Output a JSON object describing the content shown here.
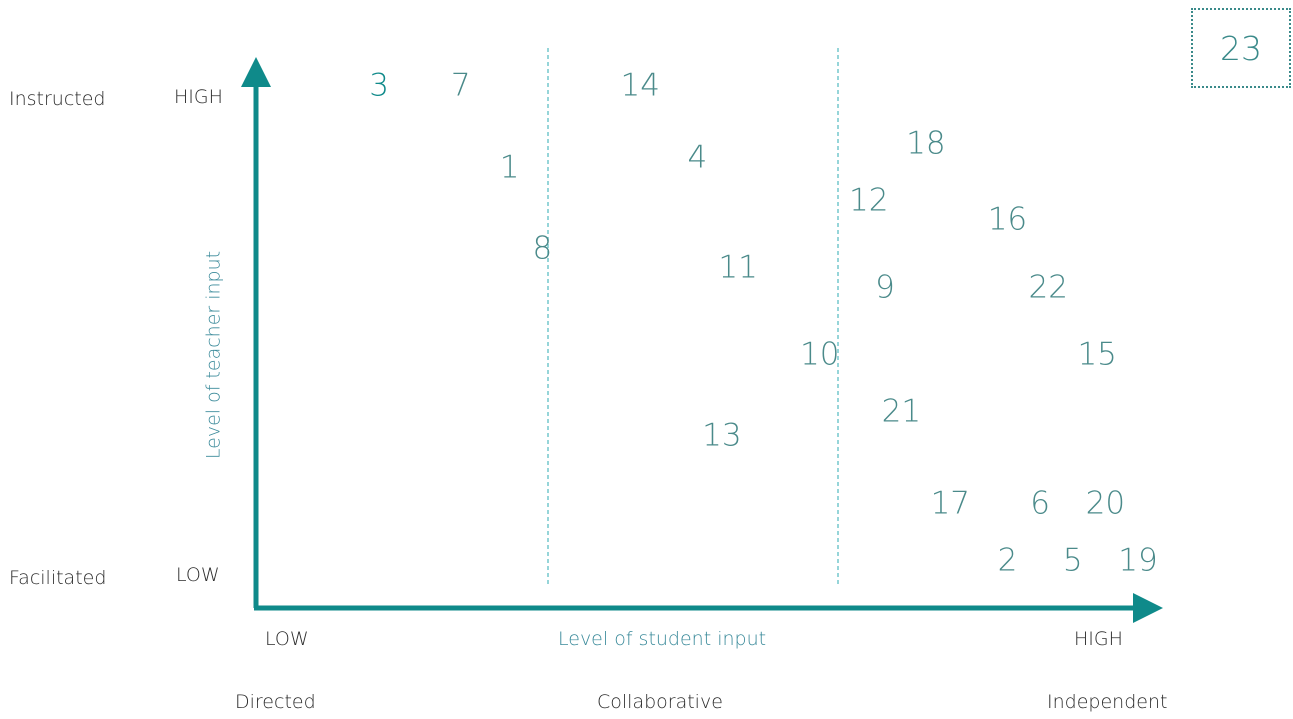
{
  "page_number": "23",
  "axes": {
    "x_title": "Level of student input",
    "y_title": "Level of teacher input",
    "x_low": "LOW",
    "x_high": "HIGH",
    "y_low": "LOW",
    "y_high": "HIGH"
  },
  "rows": {
    "top": "Instructed",
    "bottom": "Facilitated"
  },
  "columns": {
    "left": "Directed",
    "middle": "Collaborative",
    "right": "Independent"
  },
  "colors": {
    "axis": "#0f8a8a",
    "divider": "#6ac3c9",
    "number": "#4a8a8a",
    "accent_number": "#0f8a8a",
    "axis_title": "#3a8a9a"
  },
  "chart_data": {
    "type": "scatter",
    "xlabel": "Level of student input",
    "ylabel": "Level of teacher input",
    "xlim": [
      0,
      100
    ],
    "ylim": [
      0,
      100
    ],
    "points": [
      {
        "label": "3",
        "x": 7,
        "y": 100,
        "accent": true
      },
      {
        "label": "7",
        "x": 17,
        "y": 100
      },
      {
        "label": "14",
        "x": 39,
        "y": 100
      },
      {
        "label": "1",
        "x": 23,
        "y": 83
      },
      {
        "label": "4",
        "x": 46,
        "y": 85
      },
      {
        "label": "18",
        "x": 74,
        "y": 88
      },
      {
        "label": "12",
        "x": 67,
        "y": 76
      },
      {
        "label": "16",
        "x": 84,
        "y": 72
      },
      {
        "label": "8",
        "x": 27,
        "y": 66
      },
      {
        "label": "11",
        "x": 51,
        "y": 62
      },
      {
        "label": "9",
        "x": 69,
        "y": 58
      },
      {
        "label": "22",
        "x": 89,
        "y": 58
      },
      {
        "label": "10",
        "x": 61,
        "y": 44
      },
      {
        "label": "15",
        "x": 95,
        "y": 44
      },
      {
        "label": "21",
        "x": 71,
        "y": 32
      },
      {
        "label": "13",
        "x": 49,
        "y": 27
      },
      {
        "label": "17",
        "x": 77,
        "y": 13
      },
      {
        "label": "6",
        "x": 88,
        "y": 13
      },
      {
        "label": "20",
        "x": 96,
        "y": 13
      },
      {
        "label": "2",
        "x": 84,
        "y": 1
      },
      {
        "label": "5",
        "x": 92,
        "y": 1
      },
      {
        "label": "19",
        "x": 100,
        "y": 1
      }
    ]
  }
}
